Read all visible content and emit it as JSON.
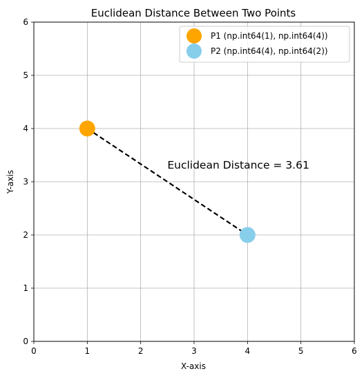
{
  "chart_data": {
    "type": "scatter",
    "title": "Euclidean Distance Between Two Points",
    "xlabel": "X-axis",
    "ylabel": "Y-axis",
    "xlim": [
      0,
      6
    ],
    "ylim": [
      0,
      6
    ],
    "xticks": [
      "0",
      "1",
      "2",
      "3",
      "4",
      "5",
      "6"
    ],
    "yticks": [
      "0",
      "1",
      "2",
      "3",
      "4",
      "5",
      "6"
    ],
    "grid": true,
    "legend_position": "top-right",
    "series": [
      {
        "name": "P1 (np.int64(1), np.int64(4))",
        "x": [
          1
        ],
        "y": [
          4
        ],
        "color": "#FFA500"
      },
      {
        "name": "P2 (np.int64(4), np.int64(2))",
        "x": [
          4
        ],
        "y": [
          2
        ],
        "color": "#87CEEB"
      }
    ],
    "line": {
      "x": [
        1,
        4
      ],
      "y": [
        4,
        2
      ],
      "style": "dashed",
      "color": "#000000"
    },
    "annotation": {
      "text": "Euclidean Distance = 3.61",
      "x": 2.5,
      "y": 3.25
    }
  }
}
